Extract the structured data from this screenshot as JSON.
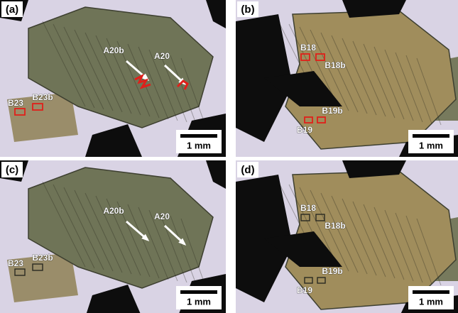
{
  "panels": [
    {
      "label": "(a)",
      "annotations": [
        "A20b",
        "A20",
        "B23",
        "B23b"
      ],
      "scale_bar": "1 mm"
    },
    {
      "label": "(b)",
      "annotations": [
        "B18",
        "B18b",
        "B19b",
        "B19"
      ],
      "scale_bar": "1 mm"
    },
    {
      "label": "(c)",
      "annotations": [
        "A20b",
        "A20",
        "B23",
        "B23b"
      ],
      "scale_bar": "1 mm"
    },
    {
      "label": "(d)",
      "annotations": [
        "B18",
        "B18b",
        "B19b",
        "B19"
      ],
      "scale_bar": "1 mm"
    }
  ]
}
